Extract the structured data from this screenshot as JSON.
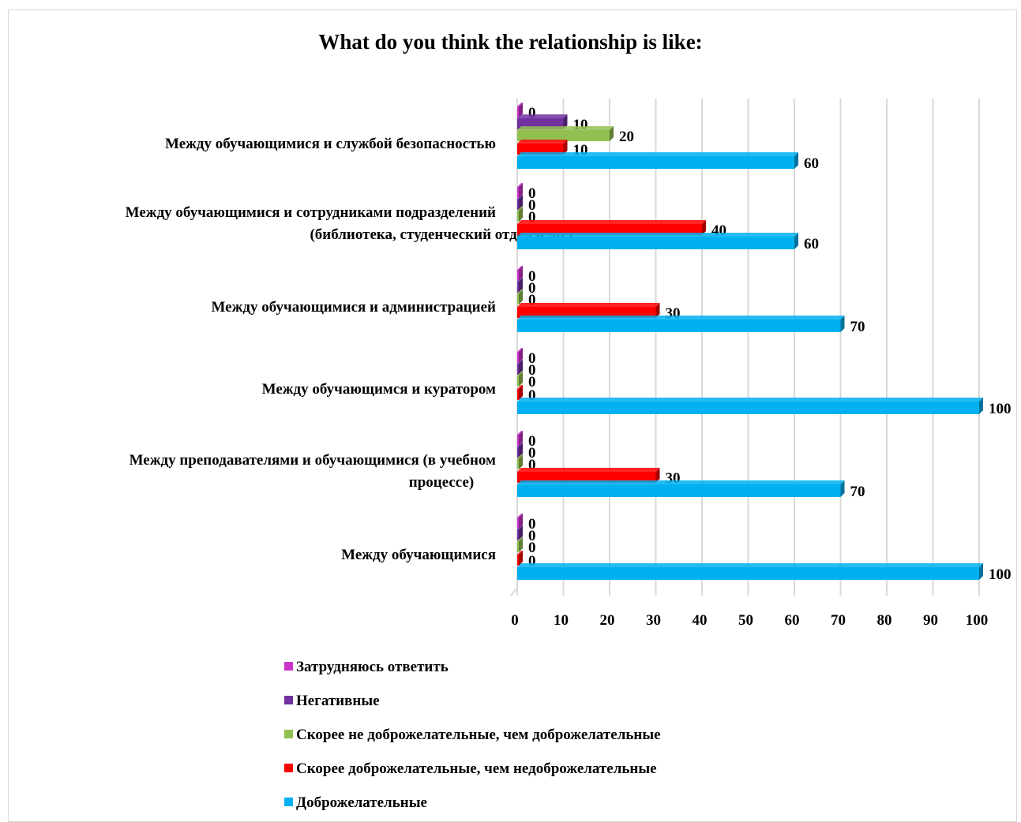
{
  "chart_data": {
    "type": "bar",
    "orientation": "horizontal",
    "title": "What do you think the relationship is like:",
    "categories": [
      [
        "Между обучающимися и службой безопасностью"
      ],
      [
        "Между обучающимися и сотрудниками подразделений",
        "(библиотека, студенческий отдел и др.)"
      ],
      [
        "Между обучающимися и администрацией"
      ],
      [
        "Между обучающимся и куратором"
      ],
      [
        "Между преподавателями и обучающимися (в учебном",
        "процессе)"
      ],
      [
        "Между обучающимися"
      ]
    ],
    "series": [
      {
        "name": "Затрудняюсь ответить",
        "color": "#cc33cc",
        "values": [
          0,
          0,
          0,
          0,
          0,
          0
        ]
      },
      {
        "name": "Негативные",
        "color": "#7030a0",
        "values": [
          10,
          0,
          0,
          0,
          0,
          0
        ]
      },
      {
        "name": "Скорее не доброжелательные, чем доброжелательные",
        "color": "#92c050",
        "values": [
          20,
          0,
          0,
          0,
          0,
          0
        ]
      },
      {
        "name": "Скорее доброжелательные, чем недоброжелательные",
        "color": "#ff0000",
        "values": [
          10,
          40,
          30,
          0,
          30,
          0
        ]
      },
      {
        "name": "Доброжелательные",
        "color": "#00b0f0",
        "values": [
          60,
          60,
          70,
          100,
          70,
          100
        ]
      }
    ],
    "x_ticks": [
      0,
      10,
      20,
      30,
      40,
      50,
      60,
      70,
      80,
      90,
      100
    ],
    "xlim": [
      0,
      100
    ],
    "grid": "vertical",
    "legend": "bottom"
  }
}
